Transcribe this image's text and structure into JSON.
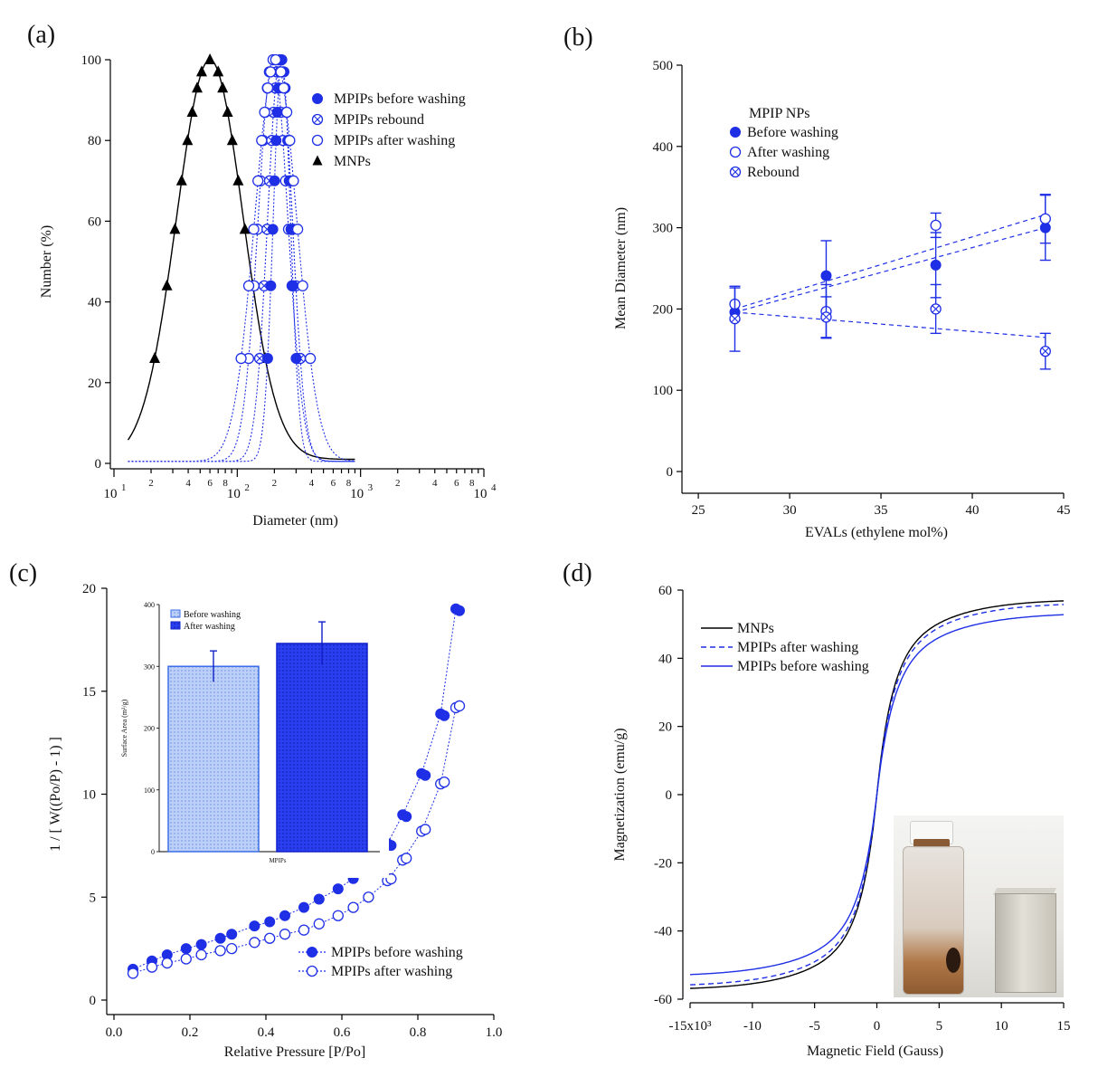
{
  "colors": {
    "blue": "#1e2fe6",
    "black": "#000000",
    "light_blue": "#a9c4f5"
  },
  "panels": {
    "a": {
      "label": "(a)"
    },
    "b": {
      "label": "(b)"
    },
    "c": {
      "label": "(c)"
    },
    "d": {
      "label": "(d)"
    }
  },
  "chart_data": [
    {
      "panel": "a",
      "type": "line",
      "xscale": "log",
      "xlabel": "Diameter (nm)",
      "ylabel": "Number (%)",
      "xlim": [
        10,
        10000
      ],
      "ylim": [
        0,
        100
      ],
      "yticks": [
        0,
        20,
        40,
        60,
        80,
        100
      ],
      "xtick_major": [
        "10",
        "10",
        "10",
        "10"
      ],
      "xtick_major_exp": [
        "1",
        "2",
        "3",
        "4"
      ],
      "xtick_minor": [
        "2",
        "4",
        "6",
        "8"
      ],
      "legend": [
        "MPIPs before washing",
        "MPIPs rebound",
        "MPIPs after washing",
        "MNPs"
      ],
      "series": [
        {
          "name": "MNPs",
          "marker": "triangle",
          "center": 60,
          "sigma": 0.27,
          "baseline": 1.0,
          "marker_y": [
            26,
            44,
            58,
            70,
            80,
            87,
            93,
            97,
            100
          ]
        },
        {
          "name": "MPIPs after washing (narrow)",
          "marker": "open-circle",
          "center": 195,
          "sigma": 0.12,
          "baseline": 0.5,
          "marker_y": [
            26,
            44,
            58,
            70,
            80,
            87,
            93,
            97,
            100
          ]
        },
        {
          "name": "MPIPs rebound",
          "marker": "crossed-circle",
          "center": 222,
          "sigma": 0.1,
          "baseline": 0.5,
          "marker_y": [
            26,
            44,
            58,
            70,
            80,
            87,
            93,
            97,
            100
          ]
        },
        {
          "name": "MPIPs before washing",
          "marker": "filled-circle",
          "center": 230,
          "sigma": 0.07,
          "baseline": 0.5,
          "marker_y": [
            26,
            44,
            58,
            70,
            80,
            87,
            93,
            97,
            100
          ]
        },
        {
          "name": "MPIPs after washing (wide)",
          "marker": "open-circle",
          "center": 205,
          "sigma": 0.17,
          "baseline": 0.5,
          "marker_y": [
            26,
            44,
            58,
            70,
            80,
            87,
            93,
            97,
            100
          ]
        }
      ]
    },
    {
      "panel": "b",
      "type": "scatter",
      "xlabel": "EVALs (ethylene mol%)",
      "ylabel": "Mean Diameter (nm)",
      "xlim": [
        24.5,
        45
      ],
      "ylim": [
        0,
        500
      ],
      "xticks": [
        25,
        30,
        35,
        40,
        45
      ],
      "yticks": [
        0,
        100,
        200,
        300,
        400,
        500
      ],
      "legend_title": "MPIP NPs",
      "legend": [
        "Before washing",
        "After washing",
        "Rebound"
      ],
      "x": [
        27,
        32,
        38,
        44
      ],
      "series": [
        {
          "name": "Before washing",
          "marker": "filled-circle",
          "values": [
            196,
            241,
            254,
            300
          ],
          "err": [
            0,
            43,
            40,
            40
          ],
          "fit": [
            196,
            300
          ]
        },
        {
          "name": "After washing",
          "marker": "open-circle",
          "values": [
            206,
            197,
            303,
            311
          ],
          "err": [
            20,
            33,
            15,
            30
          ],
          "fit": [
            200,
            316
          ]
        },
        {
          "name": "Rebound",
          "marker": "crossed-circle",
          "values": [
            188,
            190,
            200,
            148
          ],
          "err": [
            40,
            25,
            30,
            22
          ],
          "fit": [
            196,
            165
          ]
        }
      ]
    },
    {
      "panel": "c",
      "type": "scatter",
      "xlabel": "Relative Pressure [P/Po]",
      "ylabel": "1 / [ W((Po/P) - 1) ]",
      "xlim": [
        0,
        1.0
      ],
      "ylim": [
        0,
        20
      ],
      "xticks": [
        "0.0",
        "0.2",
        "0.4",
        "0.6",
        "0.8",
        "1.0"
      ],
      "yticks": [
        0,
        5,
        10,
        15,
        20
      ],
      "legend": [
        "MPIPs before washing",
        "MPIPs after washing"
      ],
      "series": [
        {
          "name": "MPIPs before washing",
          "marker": "filled-circle",
          "x": [
            0.05,
            0.1,
            0.14,
            0.19,
            0.23,
            0.28,
            0.31,
            0.37,
            0.41,
            0.45,
            0.5,
            0.54,
            0.59,
            0.63,
            0.67,
            0.72,
            0.76,
            0.81,
            0.86,
            0.9
          ],
          "y": [
            1.5,
            1.9,
            2.2,
            2.5,
            2.7,
            3.0,
            3.2,
            3.6,
            3.8,
            4.1,
            4.5,
            4.9,
            5.4,
            5.9,
            6.6,
            7.6,
            9.0,
            11.0,
            13.9,
            19.0
          ]
        },
        {
          "name": "MPIPs after washing",
          "marker": "open-circle",
          "x": [
            0.05,
            0.1,
            0.14,
            0.19,
            0.23,
            0.28,
            0.31,
            0.37,
            0.41,
            0.45,
            0.5,
            0.54,
            0.59,
            0.63,
            0.67,
            0.72,
            0.76,
            0.81,
            0.86,
            0.9
          ],
          "y": [
            1.3,
            1.6,
            1.8,
            2.0,
            2.2,
            2.4,
            2.5,
            2.8,
            3.0,
            3.2,
            3.4,
            3.7,
            4.1,
            4.5,
            5.0,
            5.8,
            6.8,
            8.2,
            10.5,
            14.2
          ]
        }
      ],
      "inset": {
        "type": "bar",
        "xlabel": "MPIPs",
        "ylabel": "Surface Area (m²/g)",
        "ylim": [
          0,
          400
        ],
        "yticks": [
          0,
          100,
          200,
          300,
          400
        ],
        "legend": [
          "Before washing",
          "After washing"
        ],
        "values": [
          300,
          337
        ],
        "err": [
          25,
          35
        ]
      }
    },
    {
      "panel": "d",
      "type": "line",
      "xlabel": "Magnetic Field (Gauss)",
      "ylabel": "Magnetization (emu/g)",
      "xlim": [
        -15000,
        15000
      ],
      "ylim": [
        -60,
        60
      ],
      "xticks": [
        "-15x10³",
        "-10",
        "-5",
        "0",
        "5",
        "10",
        "15"
      ],
      "yticks": [
        -60,
        -40,
        -20,
        0,
        20,
        40,
        60
      ],
      "legend": [
        "MNPs",
        "MPIPs after washing",
        "MPIPs before washing"
      ],
      "series": [
        {
          "name": "MNPs",
          "style": "solid-black",
          "ms": 58.5,
          "h0": 1200
        },
        {
          "name": "MPIPs after washing",
          "style": "dashed-blue",
          "ms": 57.5,
          "h0": 1250
        },
        {
          "name": "MPIPs before washing",
          "style": "solid-blue",
          "ms": 54.5,
          "h0": 1300
        }
      ]
    }
  ]
}
